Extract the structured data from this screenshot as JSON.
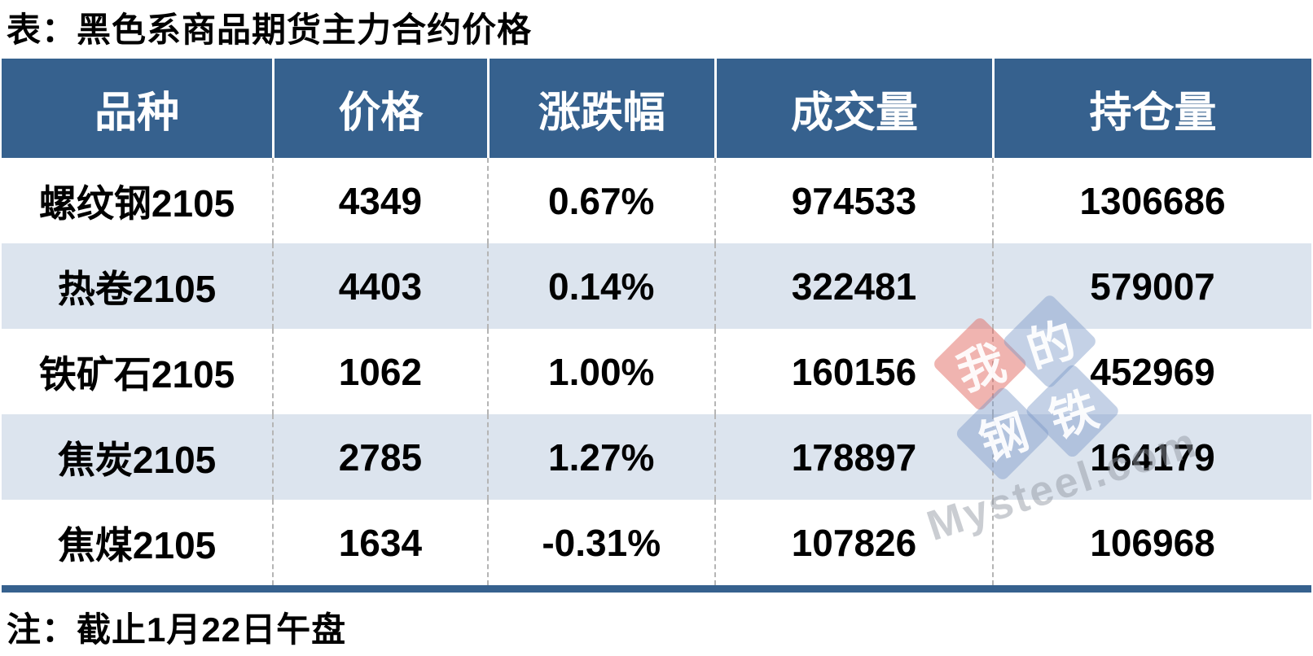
{
  "page": {
    "title": "表：黑色系商品期货主力合约价格",
    "note": "注：截止1月22日午盘"
  },
  "table": {
    "columns": [
      "品种",
      "价格",
      "涨跌幅",
      "成交量",
      "持仓量"
    ],
    "rows": [
      {
        "name": "螺纹钢2105",
        "price": "4349",
        "change": "0.67%",
        "volume": "974533",
        "open_interest": "1306686"
      },
      {
        "name": "热卷2105",
        "price": "4403",
        "change": "0.14%",
        "volume": "322481",
        "open_interest": "579007"
      },
      {
        "name": "铁矿石2105",
        "price": "1062",
        "change": "1.00%",
        "volume": "160156",
        "open_interest": "452969"
      },
      {
        "name": "焦炭2105",
        "price": "2785",
        "change": "1.27%",
        "volume": "178897",
        "open_interest": "164179"
      },
      {
        "name": "焦煤2105",
        "price": "1634",
        "change": "-0.31%",
        "volume": "107826",
        "open_interest": "106968"
      }
    ]
  },
  "watermark": {
    "tiles": [
      "我",
      "的",
      "钢",
      "铁"
    ],
    "site": "Mysteel.com"
  },
  "colors": {
    "header_bg": "#36618e",
    "row_alt_bg": "#dce4ee",
    "positive_change": "#c00000",
    "negative_change": "#538135",
    "header_text": "#ffffff",
    "body_text": "#000000",
    "divider_dashed": "#b5b5b5"
  }
}
